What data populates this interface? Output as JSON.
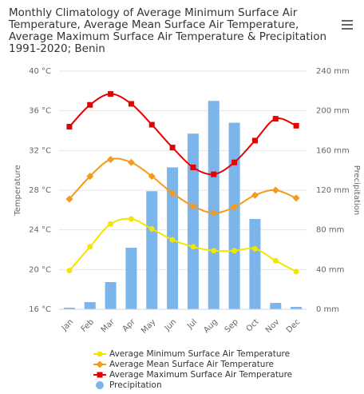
{
  "chart_data": {
    "type": "combo",
    "title": "Monthly Climatology of Average Minimum Surface Air Temperature, Average Mean Surface Air Temperature, Average Maximum Surface Air Temperature & Precipitation 1991-2020; Benin",
    "categories": [
      "Jan",
      "Feb",
      "Mar",
      "Apr",
      "May",
      "Jun",
      "Jul",
      "Aug",
      "Sep",
      "Oct",
      "Nov",
      "Dec"
    ],
    "ylabel": "Temperature",
    "y2label": "Precipitation",
    "ylim": [
      16,
      40
    ],
    "yticks": [
      {
        "value": 16,
        "label": "16 °C"
      },
      {
        "value": 20,
        "label": "20 °C"
      },
      {
        "value": 24,
        "label": "24 °C"
      },
      {
        "value": 28,
        "label": "28 °C"
      },
      {
        "value": 32,
        "label": "32 °C"
      },
      {
        "value": 36,
        "label": "36 °C"
      },
      {
        "value": 40,
        "label": "40 °C"
      }
    ],
    "y2lim": [
      0,
      240
    ],
    "y2ticks": [
      {
        "value": 0,
        "label": "0 mm"
      },
      {
        "value": 40,
        "label": "40 mm"
      },
      {
        "value": 80,
        "label": "80 mm"
      },
      {
        "value": 120,
        "label": "120 mm"
      },
      {
        "value": 160,
        "label": "160 mm"
      },
      {
        "value": 200,
        "label": "200 mm"
      },
      {
        "value": 240,
        "label": "240 mm"
      }
    ],
    "grid": true,
    "series": [
      {
        "name": "Average Minimum Surface Air Temperature",
        "type": "line",
        "marker": "circle",
        "color": "#f2e600",
        "values": [
          19.9,
          22.3,
          24.6,
          25.1,
          24.1,
          23.0,
          22.3,
          21.9,
          21.9,
          22.1,
          20.9,
          19.8
        ]
      },
      {
        "name": "Average Mean Surface Air Temperature",
        "type": "line",
        "marker": "diamond",
        "color": "#f59a1b",
        "values": [
          27.1,
          29.4,
          31.1,
          30.8,
          29.4,
          27.7,
          26.4,
          25.7,
          26.3,
          27.5,
          28.0,
          27.2
        ]
      },
      {
        "name": "Average Maximum Surface Air Temperature",
        "type": "line",
        "marker": "square",
        "color": "#e60000",
        "values": [
          34.4,
          36.6,
          37.7,
          36.7,
          34.6,
          32.3,
          30.3,
          29.6,
          30.8,
          33.0,
          35.2,
          34.5
        ]
      },
      {
        "name": "Precipitation",
        "type": "bar",
        "axis": "y2",
        "color": "#7cb5ec",
        "values": [
          1.6,
          7.2,
          27.4,
          62,
          119,
          143,
          177,
          210,
          188,
          91,
          6.4,
          2.4
        ]
      }
    ]
  }
}
